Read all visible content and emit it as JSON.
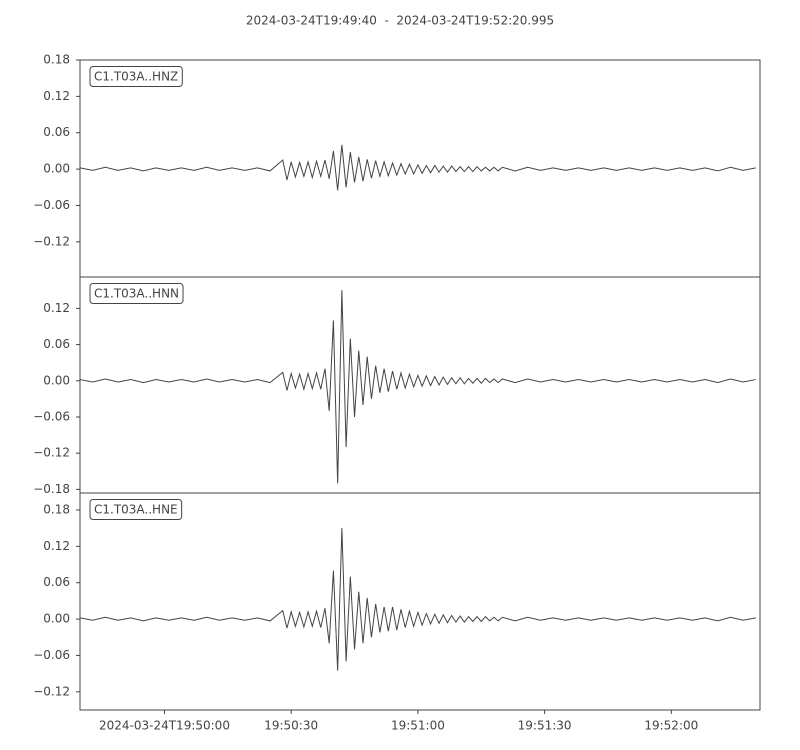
{
  "title": "2024-03-24T19:49:40  -  2024-03-24T19:52:20.995",
  "chart_data": [
    {
      "type": "line",
      "label": "C1.T03A..HNZ",
      "color": "#444444",
      "grid": false,
      "xlim": [
        0,
        160.995
      ],
      "ylim": [
        -0.178,
        0.18
      ],
      "yticks": [
        0.18,
        0.12,
        0.06,
        {
          "value": 0,
          "label": "0.00"
        },
        {
          "value": -0.06,
          "label": "−0.06"
        },
        {
          "value": -0.12,
          "label": "−0.12"
        }
      ],
      "x": [
        0,
        3,
        6,
        9,
        12,
        15,
        18,
        21,
        24,
        27,
        30,
        33,
        36,
        39,
        42,
        45,
        48,
        49,
        50,
        51,
        52,
        53,
        54,
        55,
        56,
        57,
        58,
        59,
        60,
        61,
        62,
        63,
        64,
        65,
        66,
        67,
        68,
        69,
        70,
        71,
        72,
        73,
        74,
        75,
        76,
        77,
        78,
        79,
        80,
        81,
        82,
        83,
        84,
        85,
        86,
        87,
        88,
        89,
        90,
        91,
        92,
        93,
        94,
        95,
        96,
        97,
        98,
        99,
        100,
        103,
        106,
        109,
        112,
        115,
        118,
        121,
        124,
        127,
        130,
        133,
        136,
        139,
        142,
        145,
        148,
        151,
        154,
        157,
        160
      ],
      "values": [
        0.002,
        -0.002,
        0.003,
        -0.002,
        0.002,
        -0.003,
        0.002,
        -0.002,
        0.002,
        -0.002,
        0.003,
        -0.002,
        0.002,
        -0.002,
        0.002,
        -0.003,
        0.015,
        -0.018,
        0.012,
        -0.013,
        0.011,
        -0.012,
        0.012,
        -0.014,
        0.013,
        -0.012,
        0.015,
        -0.016,
        0.03,
        -0.035,
        0.04,
        -0.03,
        0.028,
        -0.022,
        0.02,
        -0.02,
        0.016,
        -0.015,
        0.014,
        -0.012,
        0.012,
        -0.011,
        0.01,
        -0.01,
        0.009,
        -0.008,
        0.008,
        -0.008,
        0.007,
        -0.007,
        0.006,
        -0.006,
        0.006,
        -0.005,
        0.005,
        -0.005,
        0.005,
        -0.004,
        0.004,
        -0.004,
        0.004,
        -0.004,
        0.004,
        -0.003,
        0.003,
        -0.003,
        0.003,
        -0.003,
        0.003,
        -0.003,
        0.003,
        -0.002,
        0.002,
        -0.002,
        0.002,
        -0.002,
        0.002,
        -0.002,
        0.002,
        -0.002,
        0.002,
        -0.002,
        0.002,
        -0.002,
        0.002,
        -0.003,
        0.003,
        -0.002,
        0.002
      ]
    },
    {
      "type": "line",
      "label": "C1.T03A..HNN",
      "color": "#444444",
      "grid": false,
      "xlim": [
        0,
        160.995
      ],
      "ylim": [
        -0.186,
        0.172
      ],
      "yticks": [
        0.12,
        0.06,
        {
          "value": 0,
          "label": "0.00"
        },
        {
          "value": -0.06,
          "label": "−0.06"
        },
        {
          "value": -0.12,
          "label": "−0.12"
        },
        {
          "value": -0.18,
          "label": "−0.18"
        }
      ],
      "x": [
        0,
        3,
        6,
        9,
        12,
        15,
        18,
        21,
        24,
        27,
        30,
        33,
        36,
        39,
        42,
        45,
        48,
        49,
        50,
        51,
        52,
        53,
        54,
        55,
        56,
        57,
        58,
        59,
        60,
        61,
        62,
        63,
        64,
        65,
        66,
        67,
        68,
        69,
        70,
        71,
        72,
        73,
        74,
        75,
        76,
        77,
        78,
        79,
        80,
        81,
        82,
        83,
        84,
        85,
        86,
        87,
        88,
        89,
        90,
        91,
        92,
        93,
        94,
        95,
        96,
        97,
        98,
        99,
        100,
        103,
        106,
        109,
        112,
        115,
        118,
        121,
        124,
        127,
        130,
        133,
        136,
        139,
        142,
        145,
        148,
        151,
        154,
        157,
        160
      ],
      "values": [
        0.002,
        -0.002,
        0.003,
        -0.002,
        0.002,
        -0.003,
        0.002,
        -0.002,
        0.002,
        -0.002,
        0.003,
        -0.002,
        0.002,
        -0.002,
        0.002,
        -0.003,
        0.014,
        -0.016,
        0.012,
        -0.012,
        0.011,
        -0.014,
        0.012,
        -0.013,
        0.013,
        -0.014,
        0.02,
        -0.05,
        0.1,
        -0.17,
        0.15,
        -0.11,
        0.07,
        -0.06,
        0.05,
        -0.04,
        0.04,
        -0.03,
        0.025,
        -0.02,
        0.02,
        -0.018,
        0.016,
        -0.014,
        0.013,
        -0.012,
        0.011,
        -0.01,
        0.009,
        -0.009,
        0.008,
        -0.008,
        0.007,
        -0.007,
        0.006,
        -0.006,
        0.005,
        -0.005,
        0.005,
        -0.005,
        0.004,
        -0.004,
        0.004,
        -0.004,
        0.004,
        -0.003,
        0.003,
        -0.003,
        0.003,
        -0.003,
        0.003,
        -0.002,
        0.002,
        -0.002,
        0.002,
        -0.002,
        0.002,
        -0.002,
        0.002,
        -0.002,
        0.002,
        -0.002,
        0.002,
        -0.002,
        0.002,
        -0.003,
        0.003,
        -0.002,
        0.002
      ]
    },
    {
      "type": "line",
      "label": "C1.T03A..HNE",
      "color": "#444444",
      "grid": false,
      "xlim": [
        0,
        160.995
      ],
      "ylim": [
        -0.15,
        0.208
      ],
      "yticks": [
        0.18,
        0.12,
        0.06,
        {
          "value": 0,
          "label": "0.00"
        },
        {
          "value": -0.06,
          "label": "−0.06"
        },
        {
          "value": -0.12,
          "label": "−0.12"
        }
      ],
      "xticks": [
        {
          "value": 20,
          "label": "2024-03-24T19:50:00"
        },
        {
          "value": 50,
          "label": "19:50:30"
        },
        {
          "value": 80,
          "label": "19:51:00"
        },
        {
          "value": 110,
          "label": "19:51:30"
        },
        {
          "value": 140,
          "label": "19:52:00"
        }
      ],
      "x": [
        0,
        3,
        6,
        9,
        12,
        15,
        18,
        21,
        24,
        27,
        30,
        33,
        36,
        39,
        42,
        45,
        48,
        49,
        50,
        51,
        52,
        53,
        54,
        55,
        56,
        57,
        58,
        59,
        60,
        61,
        62,
        63,
        64,
        65,
        66,
        67,
        68,
        69,
        70,
        71,
        72,
        73,
        74,
        75,
        76,
        77,
        78,
        79,
        80,
        81,
        82,
        83,
        84,
        85,
        86,
        87,
        88,
        89,
        90,
        91,
        92,
        93,
        94,
        95,
        96,
        97,
        98,
        99,
        100,
        103,
        106,
        109,
        112,
        115,
        118,
        121,
        124,
        127,
        130,
        133,
        136,
        139,
        142,
        145,
        148,
        151,
        154,
        157,
        160
      ],
      "values": [
        0.002,
        -0.002,
        0.003,
        -0.002,
        0.002,
        -0.003,
        0.002,
        -0.002,
        0.002,
        -0.002,
        0.003,
        -0.002,
        0.002,
        -0.002,
        0.002,
        -0.003,
        0.014,
        -0.015,
        0.012,
        -0.012,
        0.011,
        -0.013,
        0.012,
        -0.012,
        0.013,
        -0.014,
        0.018,
        -0.04,
        0.08,
        -0.085,
        0.15,
        -0.07,
        0.07,
        -0.05,
        0.045,
        -0.04,
        0.035,
        -0.03,
        0.025,
        -0.022,
        0.02,
        -0.02,
        0.02,
        -0.018,
        0.016,
        -0.014,
        0.013,
        -0.012,
        0.011,
        -0.01,
        0.009,
        -0.008,
        0.008,
        -0.007,
        0.007,
        -0.006,
        0.006,
        -0.005,
        0.005,
        -0.005,
        0.004,
        -0.004,
        0.004,
        -0.004,
        0.004,
        -0.003,
        0.003,
        -0.003,
        0.003,
        -0.003,
        0.003,
        -0.002,
        0.002,
        -0.002,
        0.002,
        -0.002,
        0.002,
        -0.002,
        0.002,
        -0.002,
        0.002,
        -0.002,
        0.002,
        -0.002,
        0.002,
        -0.003,
        0.003,
        -0.002,
        0.002
      ]
    }
  ]
}
